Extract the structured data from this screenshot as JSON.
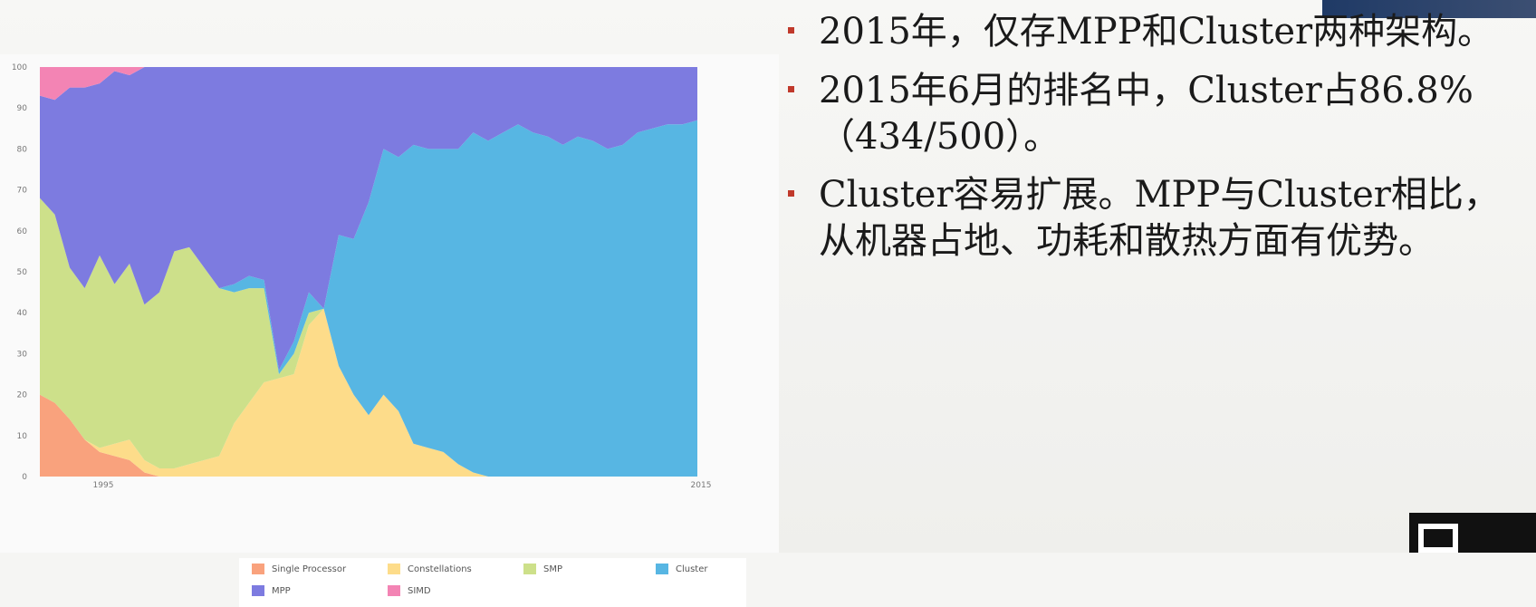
{
  "bullets": [
    {
      "text": "2015年，仅存MPP和Cluster两种架构。"
    },
    {
      "text": "2015年6月的排名中，Cluster占86.8%",
      "text2": "（434/500）。"
    },
    {
      "text": "Cluster容易扩展。MPP与Cluster相比，",
      "text2": "从机器占地、功耗和散热方面有优势。"
    }
  ],
  "colors": {
    "Single Processor": "#f9a27d",
    "Constellations": "#fddc8a",
    "SMP": "#cde08a",
    "Cluster": "#57b6e3",
    "MPP": "#7d7be0",
    "SIMD": "#f384b4",
    "bullet": "#c0392b"
  },
  "chart_data": {
    "type": "area",
    "stacked": true,
    "y_ticks": [
      0,
      10,
      20,
      30,
      40,
      50,
      60,
      70,
      80,
      90,
      100
    ],
    "ylim": [
      0,
      100
    ],
    "x_tick_labels": [
      "1995",
      "2015"
    ],
    "x_count": 45,
    "legend": [
      "Single Processor",
      "Constellations",
      "SMP",
      "Cluster",
      "MPP",
      "SIMD"
    ],
    "series": [
      {
        "name": "Single Processor",
        "values": [
          20,
          18,
          14,
          9,
          6,
          5,
          4,
          1,
          0,
          0,
          0,
          0,
          0,
          0,
          0,
          0,
          0,
          0,
          0,
          0,
          0,
          0,
          0,
          0,
          0,
          0,
          0,
          0,
          0,
          0,
          0,
          0,
          0,
          0,
          0,
          0,
          0,
          0,
          0,
          0,
          0,
          0,
          0,
          0,
          0
        ]
      },
      {
        "name": "Constellations",
        "values": [
          0,
          0,
          0,
          0,
          1,
          3,
          5,
          3,
          2,
          2,
          3,
          4,
          5,
          13,
          18,
          23,
          24,
          25,
          37,
          41,
          27,
          20,
          15,
          20,
          16,
          8,
          7,
          6,
          3,
          1,
          0,
          0,
          0,
          0,
          0,
          0,
          0,
          0,
          0,
          0,
          0,
          0,
          0,
          0,
          0
        ]
      },
      {
        "name": "SMP",
        "values": [
          48,
          46,
          37,
          37,
          47,
          39,
          43,
          38,
          43,
          53,
          53,
          47,
          41,
          32,
          28,
          23,
          1,
          5,
          3,
          0,
          0,
          0,
          0,
          0,
          0,
          0,
          0,
          0,
          0,
          0,
          0,
          0,
          0,
          0,
          0,
          0,
          0,
          0,
          0,
          0,
          0,
          0,
          0,
          0,
          0
        ]
      },
      {
        "name": "Cluster",
        "values": [
          0,
          0,
          0,
          0,
          0,
          0,
          0,
          0,
          0,
          0,
          0,
          0,
          0,
          2,
          3,
          2,
          1,
          3,
          5,
          0,
          32,
          38,
          52,
          60,
          62,
          73,
          73,
          74,
          77,
          83,
          82,
          84,
          86,
          84,
          83,
          81,
          83,
          82,
          80,
          81,
          84,
          85,
          86,
          86,
          87
        ]
      },
      {
        "name": "MPP",
        "values": [
          25,
          28,
          44,
          49,
          42,
          52,
          46,
          58,
          55,
          45,
          44,
          49,
          54,
          53,
          51,
          52,
          74,
          67,
          55,
          59,
          41,
          42,
          33,
          20,
          22,
          19,
          20,
          20,
          20,
          16,
          18,
          16,
          14,
          16,
          17,
          19,
          17,
          18,
          20,
          19,
          16,
          15,
          14,
          14,
          13
        ]
      },
      {
        "name": "SIMD",
        "values": [
          7,
          8,
          5,
          5,
          4,
          1,
          2,
          0,
          0,
          0,
          0,
          0,
          0,
          0,
          0,
          0,
          0,
          0,
          0,
          0,
          0,
          0,
          0,
          0,
          0,
          0,
          0,
          0,
          0,
          0,
          0,
          0,
          0,
          0,
          0,
          0,
          0,
          0,
          0,
          0,
          0,
          0,
          0,
          0,
          0
        ]
      }
    ]
  }
}
